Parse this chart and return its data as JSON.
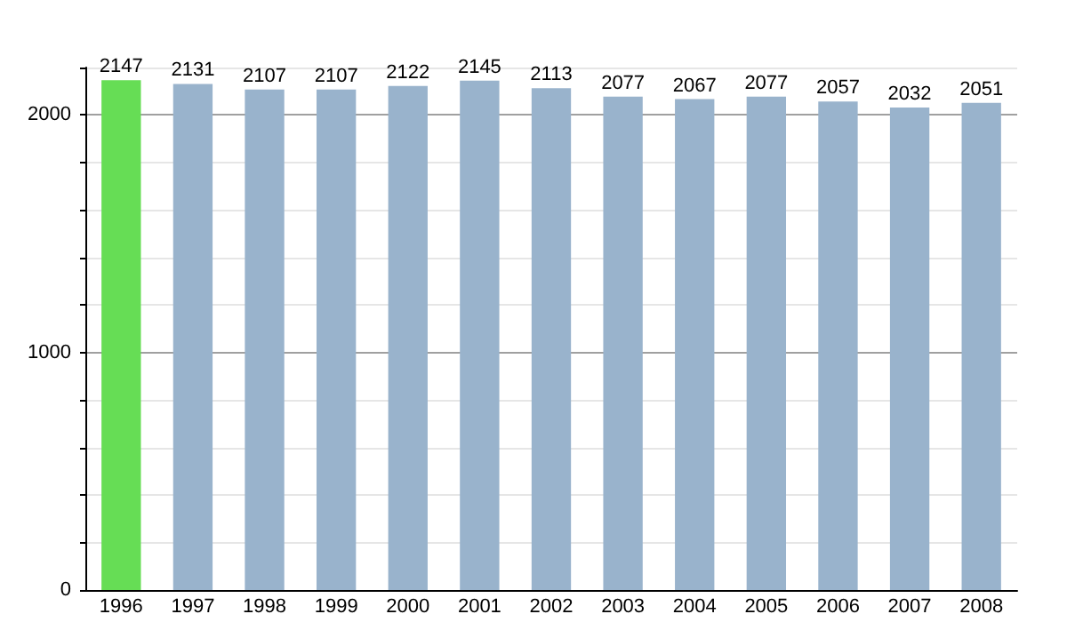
{
  "chart_data": {
    "type": "bar",
    "categories": [
      "1996",
      "1997",
      "1998",
      "1999",
      "2000",
      "2001",
      "2002",
      "2003",
      "2004",
      "2005",
      "2006",
      "2007",
      "2008"
    ],
    "values": [
      2147,
      2131,
      2107,
      2107,
      2122,
      2145,
      2113,
      2077,
      2067,
      2077,
      2057,
      2032,
      2051
    ],
    "colors": [
      "#66dd55",
      "#99b3cc",
      "#99b3cc",
      "#99b3cc",
      "#99b3cc",
      "#99b3cc",
      "#99b3cc",
      "#99b3cc",
      "#99b3cc",
      "#99b3cc",
      "#99b3cc",
      "#99b3cc",
      "#99b3cc"
    ],
    "ylim": [
      0,
      2200
    ],
    "yticks": [
      0,
      {
        "value": 200,
        "label": null
      },
      {
        "value": 400,
        "label": null
      },
      {
        "value": 600,
        "label": null
      },
      {
        "value": 800,
        "label": null
      },
      1000,
      {
        "value": 1200,
        "label": null
      },
      {
        "value": 1400,
        "label": null
      },
      {
        "value": 1600,
        "label": null
      },
      {
        "value": 1800,
        "label": null
      },
      2000,
      {
        "value": 2200,
        "label": null
      }
    ],
    "data_labels": true,
    "grid": true
  }
}
